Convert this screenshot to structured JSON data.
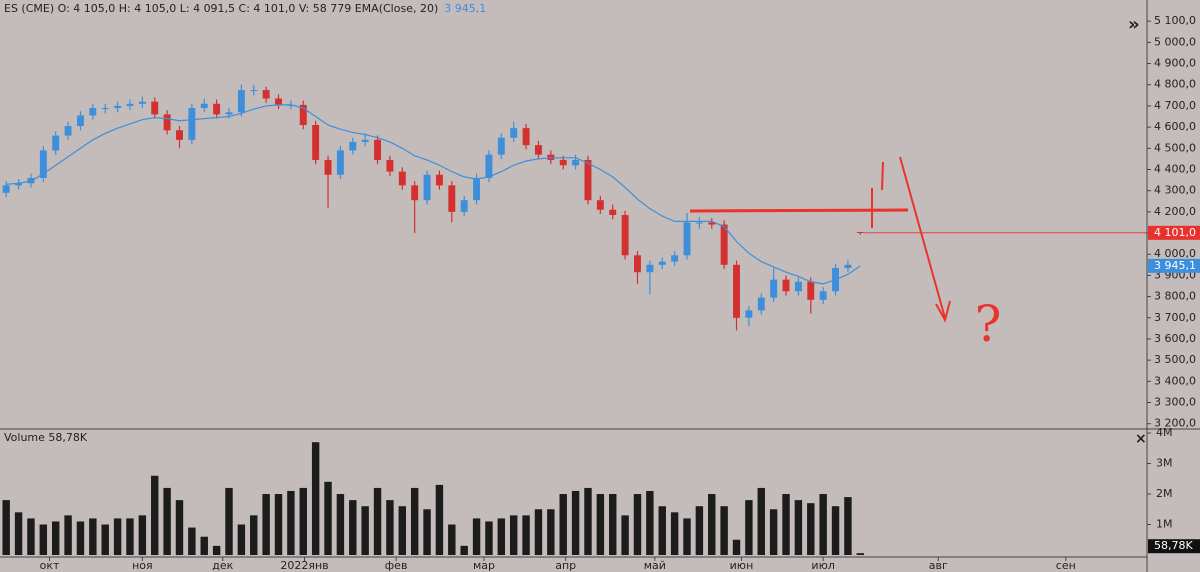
{
  "chart_data": {
    "type": "candlestick",
    "header": "ES (CME) O: 4 105,0 H: 4 105,0 L: 4 091,5 C: 4 101,0 V: 58 779 EMA(Close, 20)",
    "ema_label": {
      "value": 3945.1,
      "label": "3 945,1"
    },
    "last_label": {
      "value": 4101,
      "label": "4 101,0"
    },
    "up_color": "#3d8fdc",
    "down_color": "#d3302f",
    "ema_color": "#3d8fdc",
    "last_color": "#e8302c",
    "open": [
      4290,
      4325,
      4335,
      4360,
      4490,
      4560,
      4605,
      4655,
      4690,
      4690,
      4700,
      4710,
      4720,
      4660,
      4585,
      4540,
      4690,
      4710,
      4660,
      4670,
      4775,
      4775,
      4735,
      4705,
      4705,
      4610,
      4445,
      4375,
      4490,
      4530,
      4540,
      4445,
      4390,
      4325,
      4255,
      4375,
      4325,
      4200,
      4255,
      4360,
      4470,
      4550,
      4595,
      4515,
      4470,
      4445,
      4420,
      4445,
      4255,
      4210,
      4185,
      3995,
      3915,
      3950,
      3965,
      3995,
      4150,
      4150,
      4140,
      3950,
      3700,
      3735,
      3795,
      3880,
      3825,
      3870,
      3785,
      3825,
      3935,
      4105
    ],
    "high": [
      4345,
      4355,
      4380,
      4510,
      4580,
      4625,
      4675,
      4710,
      4710,
      4720,
      4730,
      4745,
      4740,
      4680,
      4605,
      4710,
      4735,
      4730,
      4690,
      4800,
      4800,
      4790,
      4755,
      4725,
      4725,
      4630,
      4465,
      4510,
      4550,
      4570,
      4560,
      4465,
      4410,
      4345,
      4395,
      4395,
      4345,
      4275,
      4380,
      4490,
      4570,
      4625,
      4615,
      4535,
      4490,
      4465,
      4470,
      4465,
      4275,
      4235,
      4205,
      4015,
      3970,
      3985,
      4015,
      4195,
      4175,
      4170,
      4160,
      3970,
      3755,
      3815,
      3935,
      3900,
      3890,
      3890,
      3845,
      3955,
      3970,
      4105
    ],
    "low": [
      4270,
      4305,
      4315,
      4340,
      4470,
      4540,
      4585,
      4635,
      4665,
      4670,
      4680,
      4690,
      4640,
      4565,
      4500,
      4520,
      4670,
      4640,
      4640,
      4650,
      4750,
      4715,
      4685,
      4685,
      4590,
      4425,
      4220,
      4355,
      4470,
      4510,
      4425,
      4370,
      4305,
      4100,
      4235,
      4305,
      4150,
      4180,
      4235,
      4340,
      4450,
      4530,
      4495,
      4450,
      4425,
      4400,
      4400,
      4235,
      4190,
      4165,
      3975,
      3860,
      3810,
      3930,
      3945,
      3975,
      4120,
      4120,
      3930,
      3640,
      3660,
      3715,
      3775,
      3805,
      3805,
      3720,
      3765,
      3805,
      3915,
      4091.5
    ],
    "close": [
      4325,
      4335,
      4360,
      4490,
      4560,
      4605,
      4655,
      4690,
      4690,
      4700,
      4710,
      4720,
      4660,
      4585,
      4540,
      4690,
      4710,
      4660,
      4670,
      4775,
      4775,
      4735,
      4705,
      4705,
      4610,
      4445,
      4375,
      4490,
      4530,
      4540,
      4445,
      4390,
      4325,
      4255,
      4375,
      4325,
      4200,
      4255,
      4360,
      4470,
      4550,
      4595,
      4515,
      4470,
      4445,
      4420,
      4445,
      4255,
      4210,
      4185,
      3995,
      3915,
      3950,
      3965,
      3995,
      4150,
      4150,
      4140,
      3950,
      3700,
      3735,
      3795,
      3880,
      3825,
      3870,
      3785,
      3825,
      3935,
      3950,
      4101
    ],
    "ema": [
      4330,
      4335,
      4345,
      4380,
      4420,
      4460,
      4500,
      4540,
      4570,
      4595,
      4615,
      4635,
      4645,
      4640,
      4630,
      4635,
      4640,
      4645,
      4650,
      4665,
      4685,
      4700,
      4705,
      4705,
      4690,
      4650,
      4610,
      4590,
      4575,
      4565,
      4550,
      4530,
      4500,
      4465,
      4445,
      4420,
      4390,
      4365,
      4355,
      4365,
      4390,
      4420,
      4440,
      4450,
      4455,
      4455,
      4455,
      4430,
      4400,
      4365,
      4315,
      4260,
      4215,
      4180,
      4155,
      4155,
      4155,
      4155,
      4130,
      4060,
      4005,
      3965,
      3940,
      3915,
      3895,
      3870,
      3860,
      3880,
      3905,
      3945.1
    ],
    "ylim": [
      3175,
      5200
    ],
    "yticks": [
      {
        "value": 3200,
        "label": "3 200,0"
      },
      {
        "value": 3300,
        "label": "3 300,0"
      },
      {
        "value": 3400,
        "label": "3 400,0"
      },
      {
        "value": 3500,
        "label": "3 500,0"
      },
      {
        "value": 3600,
        "label": "3 600,0"
      },
      {
        "value": 3700,
        "label": "3 700,0"
      },
      {
        "value": 3800,
        "label": "3 800,0"
      },
      {
        "value": 3900,
        "label": "3 900,0"
      },
      {
        "value": 4000,
        "label": "4 000,0"
      },
      {
        "value": 4100,
        "label": "4 100,0"
      },
      {
        "value": 4200,
        "label": "4 200,0"
      },
      {
        "value": 4300,
        "label": "4 300,0"
      },
      {
        "value": 4400,
        "label": "4 400,0"
      },
      {
        "value": 4500,
        "label": "4 500,0"
      },
      {
        "value": 4600,
        "label": "4 600,0"
      },
      {
        "value": 4700,
        "label": "4 700,0"
      },
      {
        "value": 4800,
        "label": "4 800,0"
      },
      {
        "value": 4900,
        "label": "4 900,0"
      },
      {
        "value": 5000,
        "label": "5 000,0"
      },
      {
        "value": 5100,
        "label": "5 100,0"
      }
    ],
    "xlim": [
      -0.5,
      92
    ],
    "xticks": [
      {
        "value": 3.5,
        "label": "окт"
      },
      {
        "value": 11,
        "label": "ноя"
      },
      {
        "value": 17.5,
        "label": "дек"
      },
      {
        "value": 24.1,
        "label": "2022янв"
      },
      {
        "value": 31.5,
        "label": "фев"
      },
      {
        "value": 38.6,
        "label": "мар"
      },
      {
        "value": 45.2,
        "label": "апр"
      },
      {
        "value": 52.4,
        "label": "май"
      },
      {
        "value": 59.4,
        "label": "июн"
      },
      {
        "value": 66,
        "label": "июл"
      },
      {
        "value": 75.3,
        "label": "авг"
      },
      {
        "value": 85.6,
        "label": "сен"
      }
    ],
    "annotation": "?",
    "volume": {
      "title": "Volume 58,78K",
      "color": "#1c1c1c",
      "values": [
        1800000,
        1400000,
        1200000,
        1000000,
        1100000,
        1300000,
        1100000,
        1200000,
        1000000,
        1200000,
        1200000,
        1300000,
        2600000,
        2200000,
        1800000,
        900000,
        600000,
        300000,
        2200000,
        1000000,
        1300000,
        2000000,
        2000000,
        2100000,
        2200000,
        3700000,
        2400000,
        2000000,
        1800000,
        1600000,
        2200000,
        1800000,
        1600000,
        2200000,
        1500000,
        2300000,
        1000000,
        300000,
        1200000,
        1100000,
        1200000,
        1300000,
        1300000,
        1500000,
        1500000,
        2000000,
        2100000,
        2200000,
        2000000,
        2000000,
        1300000,
        2000000,
        2100000,
        1600000,
        1400000,
        1200000,
        1600000,
        2000000,
        1600000,
        500000,
        1800000,
        2200000,
        1500000,
        2000000,
        1800000,
        1700000,
        2000000,
        1600000,
        1900000,
        58780
      ],
      "ylim": [
        0,
        4100000
      ],
      "yticks": [
        {
          "value": 1000000,
          "label": "1M"
        },
        {
          "value": 2000000,
          "label": "2M"
        },
        {
          "value": 3000000,
          "label": "3M"
        },
        {
          "value": 4000000,
          "label": "4M"
        }
      ],
      "last_label": {
        "value": 58780,
        "label": "58,78K"
      }
    }
  }
}
